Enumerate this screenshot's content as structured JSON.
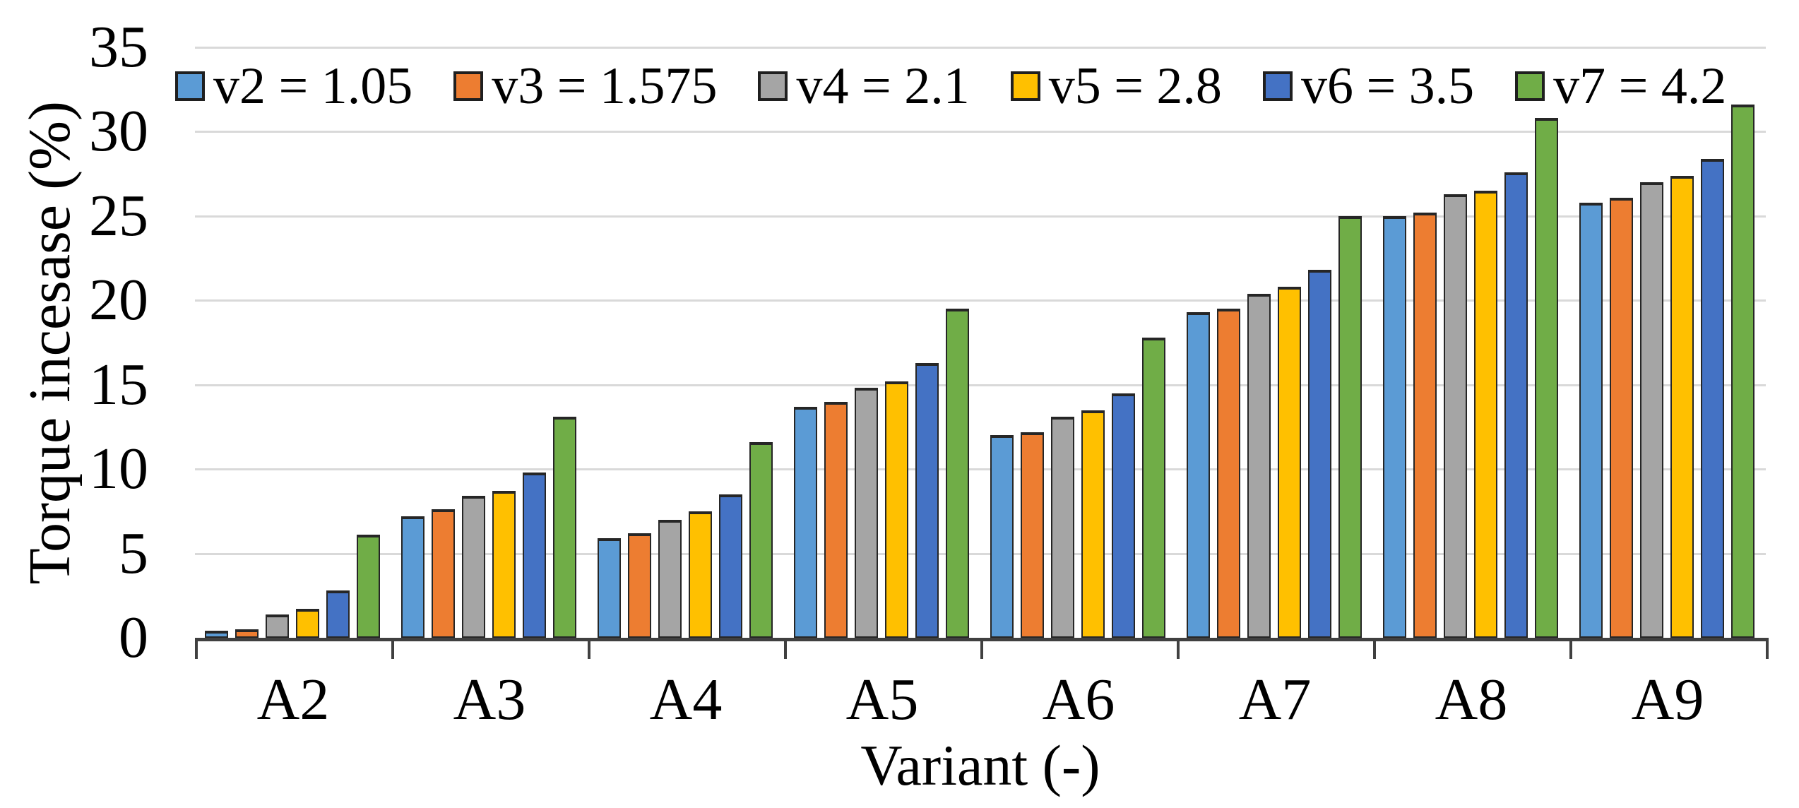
{
  "chart_data": {
    "type": "bar",
    "title": "",
    "xlabel": "Variant (-)",
    "ylabel": "Torque incesase (%)",
    "ylim": [
      0,
      35
    ],
    "yticks": [
      0,
      5,
      10,
      15,
      20,
      25,
      30,
      35
    ],
    "grid": "horizontal",
    "legend_position": "top-inside",
    "categories": [
      "A2",
      "A3",
      "A4",
      "A5",
      "A6",
      "A7",
      "A8",
      "A9"
    ],
    "series": [
      {
        "name": "v2 = 1.05",
        "color": "#5B9BD5",
        "values": [
          0.4,
          7.2,
          5.9,
          13.7,
          12.0,
          19.3,
          25.0,
          25.8
        ]
      },
      {
        "name": "v3 = 1.575",
        "color": "#ED7D31",
        "values": [
          0.5,
          7.6,
          6.2,
          14.0,
          12.2,
          19.5,
          25.2,
          26.1
        ]
      },
      {
        "name": "v4 = 2.1",
        "color": "#A5A5A5",
        "values": [
          1.4,
          8.4,
          7.0,
          14.8,
          13.1,
          20.4,
          26.3,
          27.0
        ]
      },
      {
        "name": "v5 = 2.8",
        "color": "#FFC000",
        "values": [
          1.7,
          8.7,
          7.5,
          15.2,
          13.5,
          20.8,
          26.5,
          27.4
        ]
      },
      {
        "name": "v6 = 3.5",
        "color": "#4472C4",
        "values": [
          2.8,
          9.8,
          8.5,
          16.3,
          14.5,
          21.8,
          27.6,
          28.4
        ]
      },
      {
        "name": "v7 = 4.2",
        "color": "#70AD47",
        "values": [
          6.1,
          13.1,
          11.6,
          19.5,
          17.8,
          25.0,
          30.8,
          31.6
        ]
      }
    ]
  },
  "colors": {
    "background": "#FFFFFF",
    "gridline": "#D9D9D9",
    "axis": "#404040",
    "bar_outline": "#262626",
    "text": "#000000"
  }
}
